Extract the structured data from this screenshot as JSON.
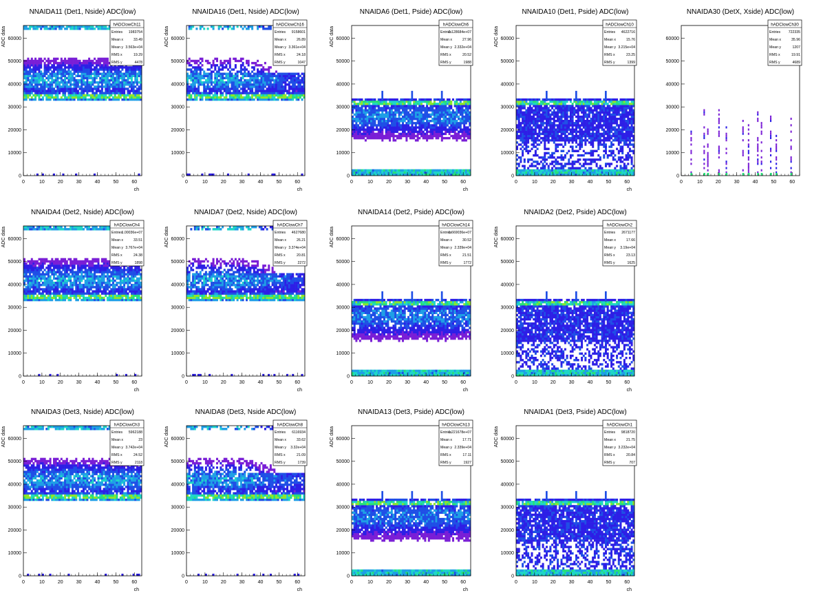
{
  "chart_data": [
    {
      "type": "heatmap",
      "title": "NNAIDA11 (Det1, Nside) ADC(low)",
      "xlabel": "ch",
      "ylabel": "ADC data",
      "xlim": [
        0,
        64
      ],
      "ylim": [
        0,
        65536
      ],
      "xticks": [
        "0",
        "10",
        "20",
        "30",
        "40",
        "50",
        "60"
      ],
      "yticks": [
        "0",
        "10000",
        "20000",
        "30000",
        "40000",
        "50000",
        "60000"
      ],
      "stats": {
        "name": "hADClowCh11",
        "rows": [
          [
            "Entries",
            "1983754"
          ],
          [
            "Mean x",
            "33.49"
          ],
          [
            "Mean y",
            "3.563e+04"
          ],
          [
            "RMS x",
            "19.29"
          ],
          [
            "RMS y",
            "4478"
          ]
        ]
      }
    },
    {
      "type": "heatmap",
      "title": "NNAIDA16 (Det1, Nside) ADC(low)",
      "xlabel": "ch",
      "ylabel": "ADC data",
      "xlim": [
        0,
        64
      ],
      "ylim": [
        0,
        65536
      ],
      "xticks": [
        "0",
        "10",
        "20",
        "30",
        "40",
        "50",
        "60"
      ],
      "yticks": [
        "0",
        "10000",
        "20000",
        "30000",
        "40000",
        "50000",
        "60000"
      ],
      "stats": {
        "name": "hADClowCh16",
        "rows": [
          [
            "Entries",
            "9158601"
          ],
          [
            "Mean x",
            "26.89"
          ],
          [
            "Mean y",
            "3.361e+04"
          ],
          [
            "RMS x",
            "24.18"
          ],
          [
            "RMS y",
            "1047"
          ]
        ]
      }
    },
    {
      "type": "heatmap",
      "title": "NNAIDA6 (Det1, Pside) ADC(low)",
      "xlabel": "ch",
      "ylabel": "ADC data",
      "xlim": [
        0,
        64
      ],
      "ylim": [
        0,
        65536
      ],
      "xticks": [
        "0",
        "10",
        "20",
        "30",
        "40",
        "50",
        "60"
      ],
      "yticks": [
        "0",
        "10000",
        "20000",
        "30000",
        "40000",
        "50000",
        "60000"
      ],
      "stats": {
        "name": "hADClowCh6",
        "rows": [
          [
            "Entries",
            "2.128684e+07"
          ],
          [
            "Mean x",
            "27.96"
          ],
          [
            "Mean y",
            "2.332e+04"
          ],
          [
            "RMS x",
            "20.52"
          ],
          [
            "RMS y",
            "1988"
          ]
        ]
      }
    },
    {
      "type": "heatmap",
      "title": "NNAIDA10 (Det1, Pside) ADC(low)",
      "xlabel": "ch",
      "ylabel": "ADC data",
      "xlim": [
        0,
        64
      ],
      "ylim": [
        0,
        65536
      ],
      "xticks": [
        "0",
        "10",
        "20",
        "30",
        "40",
        "50",
        "60"
      ],
      "yticks": [
        "0",
        "10000",
        "20000",
        "30000",
        "40000",
        "50000",
        "60000"
      ],
      "stats": {
        "name": "hADClowCh10",
        "rows": [
          [
            "Entries",
            "4622716"
          ],
          [
            "Mean x",
            "15.76"
          ],
          [
            "Mean y",
            "3.215e+04"
          ],
          [
            "RMS x",
            "23.25"
          ],
          [
            "RMS y",
            "1399"
          ]
        ]
      }
    },
    {
      "type": "heatmap",
      "title": "NNAIDA30 (DetX, Xside) ADC(low)",
      "xlabel": "",
      "ylabel": "",
      "xlim": [
        0,
        64
      ],
      "ylim": [
        0,
        65536
      ],
      "xticks": [
        "0",
        "10",
        "20",
        "30",
        "40",
        "50",
        "60"
      ],
      "yticks": [
        "0",
        "10000",
        "20000",
        "30000",
        "40000",
        "50000",
        "60000"
      ],
      "stats": {
        "name": "hADClowCh30",
        "rows": [
          [
            "Entries",
            "722335"
          ],
          [
            "Mean x",
            "35.96"
          ],
          [
            "Mean y",
            "1207"
          ],
          [
            "RMS x",
            "19.91"
          ],
          [
            "RMS y",
            "4689"
          ]
        ]
      }
    },
    {
      "type": "heatmap",
      "title": "NNAIDA4 (Det2, Nside) ADC(low)",
      "xlabel": "ch",
      "ylabel": "ADC data",
      "xlim": [
        0,
        64
      ],
      "ylim": [
        0,
        65536
      ],
      "xticks": [
        "0",
        "10",
        "20",
        "30",
        "40",
        "50",
        "60"
      ],
      "yticks": [
        "0",
        "10000",
        "20000",
        "30000",
        "40000",
        "50000",
        "60000"
      ],
      "stats": {
        "name": "hADClowCh4",
        "rows": [
          [
            "Entries",
            "1.00036e+07"
          ],
          [
            "Mean x",
            "33.51"
          ],
          [
            "Mean y",
            "3.767e+04"
          ],
          [
            "RMS x",
            "24.38"
          ],
          [
            "RMS y",
            "1898"
          ]
        ]
      }
    },
    {
      "type": "heatmap",
      "title": "NNAIDA7 (Det2, Nside) ADC(low)",
      "xlabel": "ch",
      "ylabel": "ADC data",
      "xlim": [
        0,
        64
      ],
      "ylim": [
        0,
        65536
      ],
      "xticks": [
        "0",
        "10",
        "20",
        "30",
        "40",
        "50",
        "60"
      ],
      "yticks": [
        "0",
        "10000",
        "20000",
        "30000",
        "40000",
        "50000",
        "60000"
      ],
      "stats": {
        "name": "hADClowCh7",
        "rows": [
          [
            "Entries",
            "4627680"
          ],
          [
            "Mean x",
            "26.21"
          ],
          [
            "Mean y",
            "3.374e+04"
          ],
          [
            "RMS x",
            "20.81"
          ],
          [
            "RMS y",
            "2272"
          ]
        ]
      }
    },
    {
      "type": "heatmap",
      "title": "NNAIDA14 (Det2, Pside) ADC(low)",
      "xlabel": "ch",
      "ylabel": "ADC data",
      "xlim": [
        0,
        64
      ],
      "ylim": [
        0,
        65536
      ],
      "xticks": [
        "0",
        "10",
        "20",
        "30",
        "40",
        "50",
        "60"
      ],
      "yticks": [
        "0",
        "10000",
        "20000",
        "30000",
        "40000",
        "50000",
        "60000"
      ],
      "stats": {
        "name": "hADClowCh14",
        "rows": [
          [
            "Entries",
            "1.669036e+07"
          ],
          [
            "Mean x",
            "30.52"
          ],
          [
            "Mean y",
            "2.339e+04"
          ],
          [
            "RMS x",
            "21.51"
          ],
          [
            "RMS y",
            "1772"
          ]
        ]
      }
    },
    {
      "type": "heatmap",
      "title": "NNAIDA2 (Det2, Pside) ADC(low)",
      "xlabel": "ch",
      "ylabel": "ADC data",
      "xlim": [
        0,
        64
      ],
      "ylim": [
        0,
        65536
      ],
      "xticks": [
        "0",
        "10",
        "20",
        "30",
        "40",
        "50",
        "60"
      ],
      "yticks": [
        "0",
        "10000",
        "20000",
        "30000",
        "40000",
        "50000",
        "60000"
      ],
      "stats": {
        "name": "hADClowCh2",
        "rows": [
          [
            "Entries",
            "2671177"
          ],
          [
            "Mean x",
            "17.66"
          ],
          [
            "Mean y",
            "3.19e+04"
          ],
          [
            "RMS x",
            "23.13"
          ],
          [
            "RMS y",
            "1625"
          ]
        ]
      }
    },
    {
      "type": "heatmap",
      "title": "NNAIDA3 (Det3, Nside) ADC(low)",
      "xlabel": "ch",
      "ylabel": "ADC data",
      "xlim": [
        0,
        64
      ],
      "ylim": [
        0,
        65536
      ],
      "xticks": [
        "0",
        "10",
        "20",
        "30",
        "40",
        "50",
        "60"
      ],
      "yticks": [
        "0",
        "10000",
        "20000",
        "30000",
        "40000",
        "50000",
        "60000"
      ],
      "stats": {
        "name": "hADClowCh3",
        "rows": [
          [
            "Entries",
            "5962188"
          ],
          [
            "Mean x",
            "23"
          ],
          [
            "Mean y",
            "3.742e+04"
          ],
          [
            "RMS x",
            "24.52"
          ],
          [
            "RMS y",
            "2118"
          ]
        ]
      }
    },
    {
      "type": "heatmap",
      "title": "NNAIDA8 (Det3, Nside ADC(low)",
      "xlabel": "ch",
      "ylabel": "ADC data",
      "xlim": [
        0,
        64
      ],
      "ylim": [
        0,
        65536
      ],
      "xticks": [
        "0",
        "10",
        "20",
        "30",
        "40",
        "50",
        "60"
      ],
      "yticks": [
        "0",
        "10000",
        "20000",
        "30000",
        "40000",
        "50000",
        "60000"
      ],
      "stats": {
        "name": "hADClowCh8",
        "rows": [
          [
            "Entries",
            "6116934"
          ],
          [
            "Mean x",
            "33.62"
          ],
          [
            "Mean y",
            "3.32e+04"
          ],
          [
            "RMS x",
            "21.09"
          ],
          [
            "RMS y",
            "1739"
          ]
        ]
      }
    },
    {
      "type": "heatmap",
      "title": "NNAIDA13 (Det3, Pside) ADC(low)",
      "xlabel": "ch",
      "ylabel": "ADC data",
      "xlim": [
        0,
        64
      ],
      "ylim": [
        0,
        65536
      ],
      "xticks": [
        "0",
        "10",
        "20",
        "30",
        "40",
        "50",
        "60"
      ],
      "yticks": [
        "0",
        "10000",
        "20000",
        "30000",
        "40000",
        "50000",
        "60000"
      ],
      "stats": {
        "name": "hADClowCh13",
        "rows": [
          [
            "Entries",
            "1.221678e+07"
          ],
          [
            "Mean x",
            "17.71"
          ],
          [
            "Mean y",
            "2.339e+04"
          ],
          [
            "RMS x",
            "17.11"
          ],
          [
            "RMS y",
            "1927"
          ]
        ]
      }
    },
    {
      "type": "heatmap",
      "title": "NNAIDA1 (Det3, Pside) ADC(low)",
      "xlabel": "ch",
      "ylabel": "ADC data",
      "xlim": [
        0,
        64
      ],
      "ylim": [
        0,
        65536
      ],
      "xticks": [
        "0",
        "10",
        "20",
        "30",
        "40",
        "50",
        "60"
      ],
      "yticks": [
        "0",
        "10000",
        "20000",
        "30000",
        "40000",
        "50000",
        "60000"
      ],
      "stats": {
        "name": "hADClowCh1",
        "rows": [
          [
            "Entries",
            "9818720"
          ],
          [
            "Mean x",
            "21.75"
          ],
          [
            "Mean y",
            "3.232e+04"
          ],
          [
            "RMS x",
            "20.84"
          ],
          [
            "RMS y",
            "707"
          ]
        ]
      }
    }
  ],
  "colors": {
    "axis": "#000000",
    "background": "#ffffff",
    "palette": [
      "#7a1fd6",
      "#2d1fe6",
      "#1f4fe6",
      "#1f9fe6",
      "#1fd6c8",
      "#27e07a",
      "#8ee62a"
    ]
  }
}
